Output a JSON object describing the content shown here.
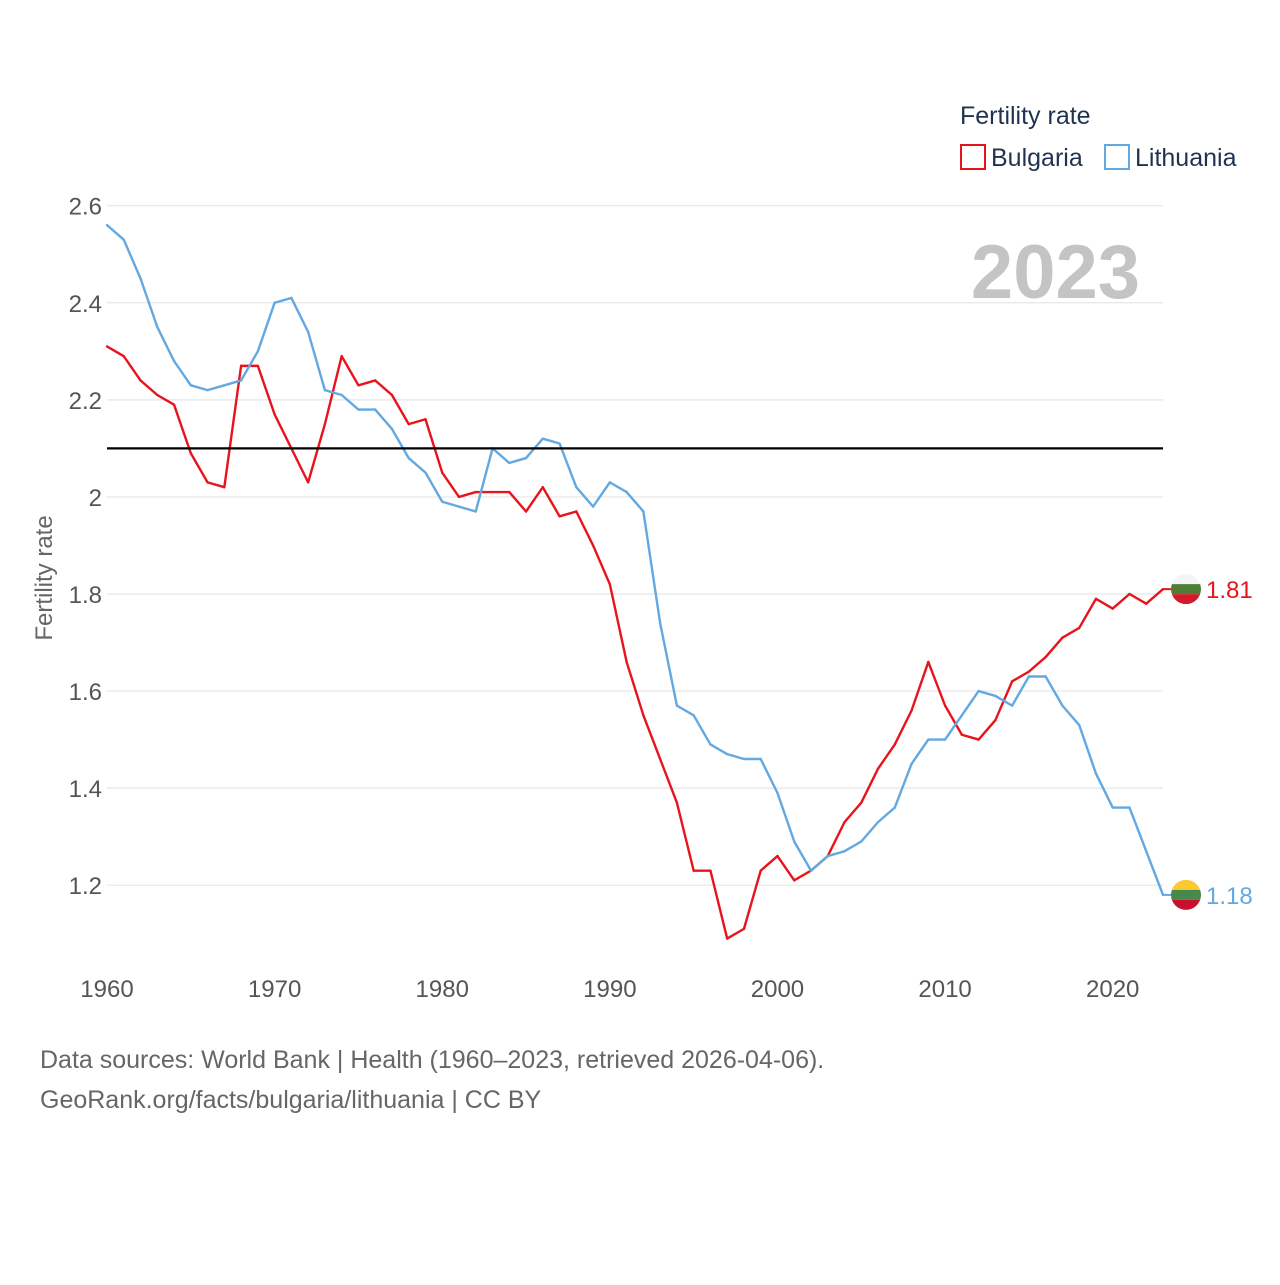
{
  "chart_data": {
    "type": "line",
    "ylabel": "Fertility rate",
    "legend_title": "Fertility rate",
    "legend_position": "top-right",
    "year_label": "2023",
    "xlim": [
      1960,
      2023
    ],
    "ylim": [
      1.05,
      2.62
    ],
    "x_ticks": [
      1960,
      1970,
      1980,
      1990,
      2000,
      2010,
      2020
    ],
    "y_ticks": [
      1.2,
      1.4,
      1.6,
      1.8,
      2,
      2.2,
      2.4,
      2.6
    ],
    "reference_line": 2.1,
    "grid": true,
    "series": [
      {
        "name": "Bulgaria",
        "color": "#e8141c",
        "end_label": "1.81",
        "x": [
          1960,
          1961,
          1962,
          1963,
          1964,
          1965,
          1966,
          1967,
          1968,
          1969,
          1970,
          1971,
          1972,
          1973,
          1974,
          1975,
          1976,
          1977,
          1978,
          1979,
          1980,
          1981,
          1982,
          1983,
          1984,
          1985,
          1986,
          1987,
          1988,
          1989,
          1990,
          1991,
          1992,
          1993,
          1994,
          1995,
          1996,
          1997,
          1998,
          1999,
          2000,
          2001,
          2002,
          2003,
          2004,
          2005,
          2006,
          2007,
          2008,
          2009,
          2010,
          2011,
          2012,
          2013,
          2014,
          2015,
          2016,
          2017,
          2018,
          2019,
          2020,
          2021,
          2022,
          2023
        ],
        "values": [
          2.31,
          2.29,
          2.24,
          2.21,
          2.19,
          2.09,
          2.03,
          2.02,
          2.27,
          2.27,
          2.17,
          2.1,
          2.03,
          2.15,
          2.29,
          2.23,
          2.24,
          2.21,
          2.15,
          2.16,
          2.05,
          2.0,
          2.01,
          2.01,
          2.01,
          1.97,
          2.02,
          1.96,
          1.97,
          1.9,
          1.82,
          1.66,
          1.55,
          1.46,
          1.37,
          1.23,
          1.23,
          1.09,
          1.11,
          1.23,
          1.26,
          1.21,
          1.23,
          1.26,
          1.33,
          1.37,
          1.44,
          1.49,
          1.56,
          1.66,
          1.57,
          1.51,
          1.5,
          1.54,
          1.62,
          1.64,
          1.67,
          1.71,
          1.73,
          1.79,
          1.77,
          1.8,
          1.78,
          1.81
        ]
      },
      {
        "name": "Lithuania",
        "color": "#64a8e2",
        "end_label": "1.18",
        "x": [
          1960,
          1961,
          1962,
          1963,
          1964,
          1965,
          1966,
          1967,
          1968,
          1969,
          1970,
          1971,
          1972,
          1973,
          1974,
          1975,
          1976,
          1977,
          1978,
          1979,
          1980,
          1981,
          1982,
          1983,
          1984,
          1985,
          1986,
          1987,
          1988,
          1989,
          1990,
          1991,
          1992,
          1993,
          1994,
          1995,
          1996,
          1997,
          1998,
          1999,
          2000,
          2001,
          2002,
          2003,
          2004,
          2005,
          2006,
          2007,
          2008,
          2009,
          2010,
          2011,
          2012,
          2013,
          2014,
          2015,
          2016,
          2017,
          2018,
          2019,
          2020,
          2021,
          2022,
          2023
        ],
        "values": [
          2.56,
          2.53,
          2.45,
          2.35,
          2.28,
          2.23,
          2.22,
          2.23,
          2.24,
          2.3,
          2.4,
          2.41,
          2.34,
          2.22,
          2.21,
          2.18,
          2.18,
          2.14,
          2.08,
          2.05,
          1.99,
          1.98,
          1.97,
          2.1,
          2.07,
          2.08,
          2.12,
          2.11,
          2.02,
          1.98,
          2.03,
          2.01,
          1.97,
          1.74,
          1.57,
          1.55,
          1.49,
          1.47,
          1.46,
          1.46,
          1.39,
          1.29,
          1.23,
          1.26,
          1.27,
          1.29,
          1.33,
          1.36,
          1.45,
          1.5,
          1.5,
          1.55,
          1.6,
          1.59,
          1.57,
          1.63,
          1.63,
          1.57,
          1.53,
          1.43,
          1.36,
          1.36,
          1.27,
          1.18
        ]
      }
    ]
  },
  "footer": {
    "sources": "Data sources: World Bank | Health (1960–2023, retrieved 2026-04-06).",
    "credit": "GeoRank.org/facts/bulgaria/lithuania | CC BY"
  }
}
